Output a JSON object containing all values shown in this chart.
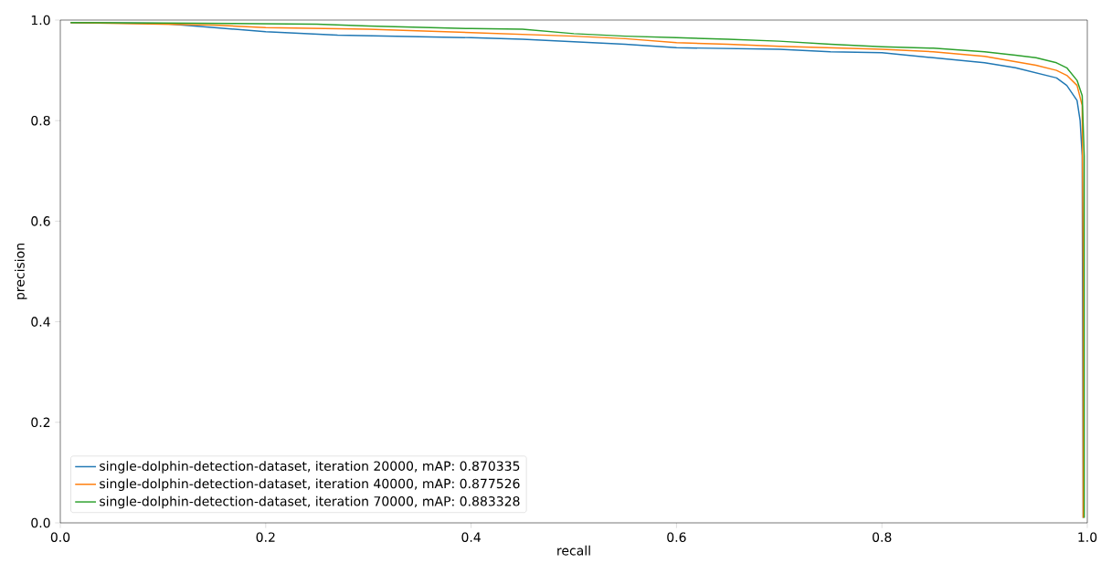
{
  "chart_data": {
    "type": "line",
    "xlabel": "recall",
    "ylabel": "precision",
    "xlim": [
      0,
      1
    ],
    "ylim": [
      0,
      1
    ],
    "xticks": [
      {
        "value": 0,
        "label": "0.0"
      },
      0.2,
      0.4,
      0.6,
      0.8,
      {
        "value": 1,
        "label": "1.0"
      }
    ],
    "yticks": [
      {
        "value": 0,
        "label": "0.0"
      },
      0.2,
      0.4,
      0.6,
      0.8,
      {
        "value": 1,
        "label": "1.0"
      }
    ],
    "legend": "bottom left",
    "grid": false,
    "series": [
      {
        "name": "single-dolphin-detection-dataset, iteration 20000, mAP: 0.870335",
        "color": "#1f77b4",
        "x": [
          0.01,
          0.1,
          0.15,
          0.2,
          0.27,
          0.4,
          0.45,
          0.5,
          0.55,
          0.6,
          0.7,
          0.75,
          0.8,
          0.85,
          0.9,
          0.93,
          0.95,
          0.97,
          0.98,
          0.99,
          0.993,
          0.995,
          0.996
        ],
        "values": [
          0.995,
          0.993,
          0.985,
          0.977,
          0.97,
          0.965,
          0.962,
          0.957,
          0.952,
          0.945,
          0.942,
          0.937,
          0.935,
          0.925,
          0.915,
          0.905,
          0.895,
          0.885,
          0.87,
          0.84,
          0.8,
          0.73,
          0.01
        ]
      },
      {
        "name": "single-dolphin-detection-dataset, iteration 40000, mAP: 0.877526",
        "color": "#ff7f0e",
        "x": [
          0.01,
          0.15,
          0.2,
          0.3,
          0.4,
          0.5,
          0.55,
          0.6,
          0.65,
          0.7,
          0.8,
          0.85,
          0.9,
          0.95,
          0.97,
          0.98,
          0.99,
          0.995,
          0.996,
          0.996
        ],
        "values": [
          0.995,
          0.99,
          0.985,
          0.982,
          0.975,
          0.968,
          0.963,
          0.955,
          0.952,
          0.948,
          0.942,
          0.937,
          0.928,
          0.91,
          0.9,
          0.89,
          0.87,
          0.83,
          0.5,
          0.01
        ]
      },
      {
        "name": "single-dolphin-detection-dataset, iteration 70000, mAP: 0.883328",
        "color": "#2ca02c",
        "x": [
          0.01,
          0.1,
          0.25,
          0.3,
          0.4,
          0.45,
          0.5,
          0.55,
          0.6,
          0.65,
          0.7,
          0.75,
          0.8,
          0.85,
          0.9,
          0.93,
          0.95,
          0.97,
          0.98,
          0.99,
          0.995,
          0.997,
          0.997
        ],
        "values": [
          0.995,
          0.994,
          0.992,
          0.988,
          0.983,
          0.982,
          0.973,
          0.968,
          0.965,
          0.962,
          0.958,
          0.952,
          0.947,
          0.944,
          0.937,
          0.93,
          0.925,
          0.915,
          0.905,
          0.88,
          0.85,
          0.73,
          0.01
        ]
      }
    ]
  }
}
